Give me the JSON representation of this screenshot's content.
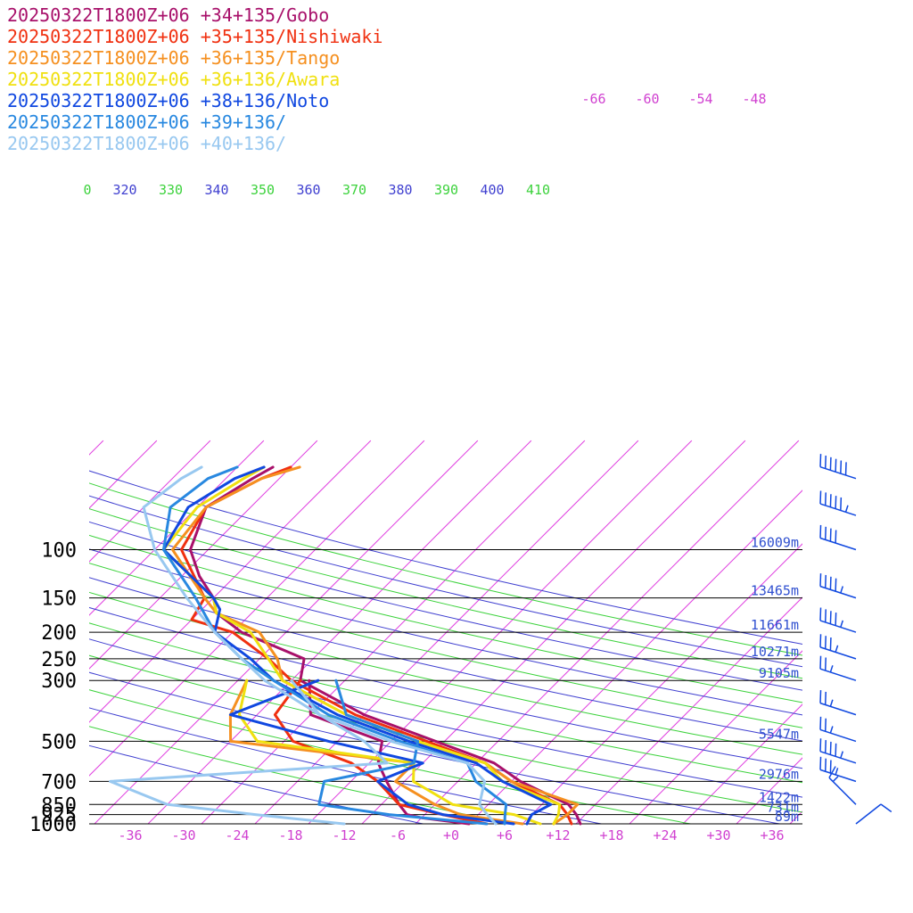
{
  "chart_data": {
    "type": "line",
    "kind": "skew-T log-p sounding",
    "legend": [
      {
        "text": "20250322T1800Z+06 +34+135/Gobo",
        "color": "#a8106a"
      },
      {
        "text": "20250322T1800Z+06 +35+135/Nishiwaki",
        "color": "#f03010"
      },
      {
        "text": "20250322T1800Z+06 +36+135/Tango",
        "color": "#f59020"
      },
      {
        "text": "20250322T1800Z+06 +36+136/Awara",
        "color": "#f0e010"
      },
      {
        "text": "20250322T1800Z+06 +38+136/Noto",
        "color": "#1048e0"
      },
      {
        "text": "20250322T1800Z+06 +39+136/",
        "color": "#2888e0"
      },
      {
        "text": "20250322T1800Z+06 +40+136/",
        "color": "#98c8f0"
      }
    ],
    "pressure_levels": [
      {
        "p": 100,
        "label": "100",
        "height": "16009m"
      },
      {
        "p": 150,
        "label": "150",
        "height": "13465m"
      },
      {
        "p": 200,
        "label": "200",
        "height": "11661m"
      },
      {
        "p": 250,
        "label": "250",
        "height": "10271m"
      },
      {
        "p": 300,
        "label": "300",
        "height": "9105m"
      },
      {
        "p": 500,
        "label": "500",
        "height": "5547m"
      },
      {
        "p": 700,
        "label": "700",
        "height": "2976m"
      },
      {
        "p": 850,
        "label": "850",
        "height": "1422m"
      },
      {
        "p": 925,
        "label": "925",
        "height": "731m"
      },
      {
        "p": 1000,
        "label": "1000",
        "height": "89m"
      }
    ],
    "x_ticks": [
      "-36",
      "-30",
      "-24",
      "-18",
      "-12",
      "-6",
      "+0",
      "+6",
      "+12",
      "+18",
      "+24",
      "+30",
      "+36"
    ],
    "upper_temp_labels": [
      "-66",
      "-60",
      "-54",
      "-48"
    ],
    "theta_labels": [
      {
        "text": "0",
        "color": "#3cd23c"
      },
      {
        "text": "320",
        "color": "#4040d0"
      },
      {
        "text": "330",
        "color": "#3cd23c"
      },
      {
        "text": "340",
        "color": "#4040d0"
      },
      {
        "text": "350",
        "color": "#3cd23c"
      },
      {
        "text": "360",
        "color": "#4040d0"
      },
      {
        "text": "370",
        "color": "#3cd23c"
      },
      {
        "text": "380",
        "color": "#4040d0"
      },
      {
        "text": "390",
        "color": "#3cd23c"
      },
      {
        "text": "400",
        "color": "#4040d0"
      },
      {
        "text": "410",
        "color": "#3cd23c"
      }
    ],
    "series": [
      {
        "name": "Gobo",
        "color": "#a8106a",
        "temp": [
          [
            1000,
            14.5
          ],
          [
            925,
            13
          ],
          [
            850,
            11
          ],
          [
            700,
            3
          ],
          [
            600,
            -2
          ],
          [
            500,
            -11
          ],
          [
            400,
            -22
          ],
          [
            300,
            -33
          ],
          [
            250,
            -35
          ],
          [
            200,
            -45
          ],
          [
            170,
            -50
          ],
          [
            150,
            -52
          ],
          [
            125,
            -56
          ],
          [
            100,
            -60
          ],
          [
            70,
            -63
          ],
          [
            55,
            -61
          ],
          [
            50,
            -60
          ]
        ],
        "dew": [
          [
            1000,
            2
          ],
          [
            950,
            -4
          ],
          [
            925,
            -6
          ],
          [
            850,
            -8
          ],
          [
            700,
            -12
          ],
          [
            600,
            -15
          ],
          [
            500,
            -17
          ],
          [
            400,
            -28
          ],
          [
            300,
            -32
          ]
        ]
      },
      {
        "name": "Nishiwaki",
        "color": "#f03010",
        "temp": [
          [
            1000,
            13.5
          ],
          [
            925,
            12
          ],
          [
            850,
            10
          ],
          [
            700,
            2
          ],
          [
            600,
            -3
          ],
          [
            500,
            -12
          ],
          [
            400,
            -23
          ],
          [
            300,
            -34
          ],
          [
            250,
            -39
          ],
          [
            200,
            -46
          ],
          [
            180,
            -52
          ],
          [
            150,
            -53
          ],
          [
            100,
            -61
          ],
          [
            70,
            -63
          ],
          [
            55,
            -60
          ],
          [
            50,
            -58
          ]
        ],
        "dew": [
          [
            1000,
            4
          ],
          [
            925,
            -2
          ],
          [
            850,
            -8
          ],
          [
            700,
            -13
          ],
          [
            600,
            -18
          ],
          [
            500,
            -27
          ],
          [
            400,
            -32
          ],
          [
            300,
            -33
          ]
        ]
      },
      {
        "name": "Tango",
        "color": "#f59020",
        "temp": [
          [
            1000,
            11.5
          ],
          [
            925,
            12
          ],
          [
            850,
            12
          ],
          [
            700,
            2
          ],
          [
            600,
            -3
          ],
          [
            500,
            -13
          ],
          [
            400,
            -24
          ],
          [
            300,
            -35
          ],
          [
            250,
            -38
          ],
          [
            200,
            -43
          ],
          [
            170,
            -50
          ],
          [
            150,
            -53
          ],
          [
            100,
            -62
          ],
          [
            70,
            -63
          ],
          [
            55,
            -60
          ],
          [
            50,
            -57
          ]
        ],
        "dew": [
          [
            1000,
            8
          ],
          [
            925,
            0
          ],
          [
            850,
            -4
          ],
          [
            700,
            -11
          ],
          [
            600,
            -11
          ],
          [
            500,
            -34
          ],
          [
            400,
            -37
          ],
          [
            300,
            -39
          ]
        ]
      },
      {
        "name": "Awara",
        "color": "#f0e010",
        "temp": [
          [
            1000,
            11.5
          ],
          [
            925,
            11
          ],
          [
            850,
            10
          ],
          [
            700,
            1
          ],
          [
            600,
            -3
          ],
          [
            500,
            -13
          ],
          [
            400,
            -24
          ],
          [
            300,
            -35
          ],
          [
            250,
            -39
          ],
          [
            200,
            -44
          ],
          [
            170,
            -50
          ],
          [
            150,
            -52
          ],
          [
            100,
            -63
          ],
          [
            70,
            -64
          ],
          [
            55,
            -62
          ],
          [
            50,
            -61
          ]
        ],
        "dew": [
          [
            1000,
            10
          ],
          [
            925,
            6
          ],
          [
            850,
            -2
          ],
          [
            700,
            -9
          ],
          [
            600,
            -11
          ],
          [
            500,
            -31
          ],
          [
            400,
            -36
          ],
          [
            300,
            -39
          ]
        ]
      },
      {
        "name": "Noto",
        "color": "#1048e0",
        "temp": [
          [
            1000,
            8.5
          ],
          [
            925,
            8
          ],
          [
            850,
            9
          ],
          [
            700,
            1
          ],
          [
            600,
            -4
          ],
          [
            500,
            -14
          ],
          [
            400,
            -25
          ],
          [
            300,
            -36
          ],
          [
            250,
            -41
          ],
          [
            200,
            -48
          ],
          [
            165,
            -50
          ],
          [
            150,
            -52
          ],
          [
            100,
            -63
          ],
          [
            70,
            -65
          ],
          [
            55,
            -63
          ],
          [
            50,
            -61
          ]
        ],
        "dew": [
          [
            1000,
            7
          ],
          [
            925,
            -2
          ],
          [
            850,
            -7
          ],
          [
            700,
            -13
          ],
          [
            600,
            -10
          ],
          [
            500,
            -23
          ],
          [
            400,
            -37
          ],
          [
            300,
            -31
          ]
        ]
      },
      {
        "name": "39N136E",
        "color": "#2888e0",
        "temp": [
          [
            1000,
            6
          ],
          [
            925,
            5
          ],
          [
            850,
            4
          ],
          [
            700,
            -2
          ],
          [
            600,
            -5
          ],
          [
            500,
            -15
          ],
          [
            400,
            -26
          ],
          [
            300,
            -36
          ],
          [
            250,
            -42
          ],
          [
            200,
            -48
          ],
          [
            150,
            -54
          ],
          [
            100,
            -63
          ],
          [
            70,
            -67
          ],
          [
            55,
            -66
          ],
          [
            50,
            -64
          ]
        ],
        "dew": [
          [
            1000,
            4
          ],
          [
            925,
            -8
          ],
          [
            850,
            -17
          ],
          [
            700,
            -19
          ],
          [
            600,
            -11
          ],
          [
            500,
            -13
          ],
          [
            400,
            -24
          ],
          [
            300,
            -29
          ]
        ]
      },
      {
        "name": "40N136E",
        "color": "#98c8f0",
        "temp": [
          [
            1000,
            5
          ],
          [
            925,
            3
          ],
          [
            850,
            1
          ],
          [
            700,
            -1
          ],
          [
            600,
            -5
          ],
          [
            500,
            -16
          ],
          [
            400,
            -27
          ],
          [
            300,
            -37
          ],
          [
            250,
            -42
          ],
          [
            200,
            -48
          ],
          [
            150,
            -55
          ],
          [
            100,
            -64
          ],
          [
            70,
            -70
          ],
          [
            55,
            -69
          ],
          [
            50,
            -68
          ]
        ],
        "dew": [
          [
            1000,
            -12
          ],
          [
            925,
            -23
          ],
          [
            850,
            -34
          ],
          [
            700,
            -43
          ],
          [
            600,
            -14
          ],
          [
            500,
            -19
          ],
          [
            400,
            -27
          ],
          [
            300,
            -34
          ]
        ]
      }
    ],
    "wind_barbs": [
      {
        "p": 55,
        "speed": 60,
        "dir": 290
      },
      {
        "p": 75,
        "speed": 55,
        "dir": 290
      },
      {
        "p": 100,
        "speed": 40,
        "dir": 290
      },
      {
        "p": 150,
        "speed": 45,
        "dir": 290
      },
      {
        "p": 200,
        "speed": 45,
        "dir": 290
      },
      {
        "p": 250,
        "speed": 35,
        "dir": 290
      },
      {
        "p": 300,
        "speed": 25,
        "dir": 290
      },
      {
        "p": 400,
        "speed": 25,
        "dir": 290
      },
      {
        "p": 500,
        "speed": 25,
        "dir": 290
      },
      {
        "p": 600,
        "speed": 45,
        "dir": 290
      },
      {
        "p": 700,
        "speed": 35,
        "dir": 290
      },
      {
        "p": 850,
        "speed": 15,
        "dir": 230
      },
      {
        "p": 1000,
        "speed": 10,
        "dir": 220
      }
    ]
  }
}
